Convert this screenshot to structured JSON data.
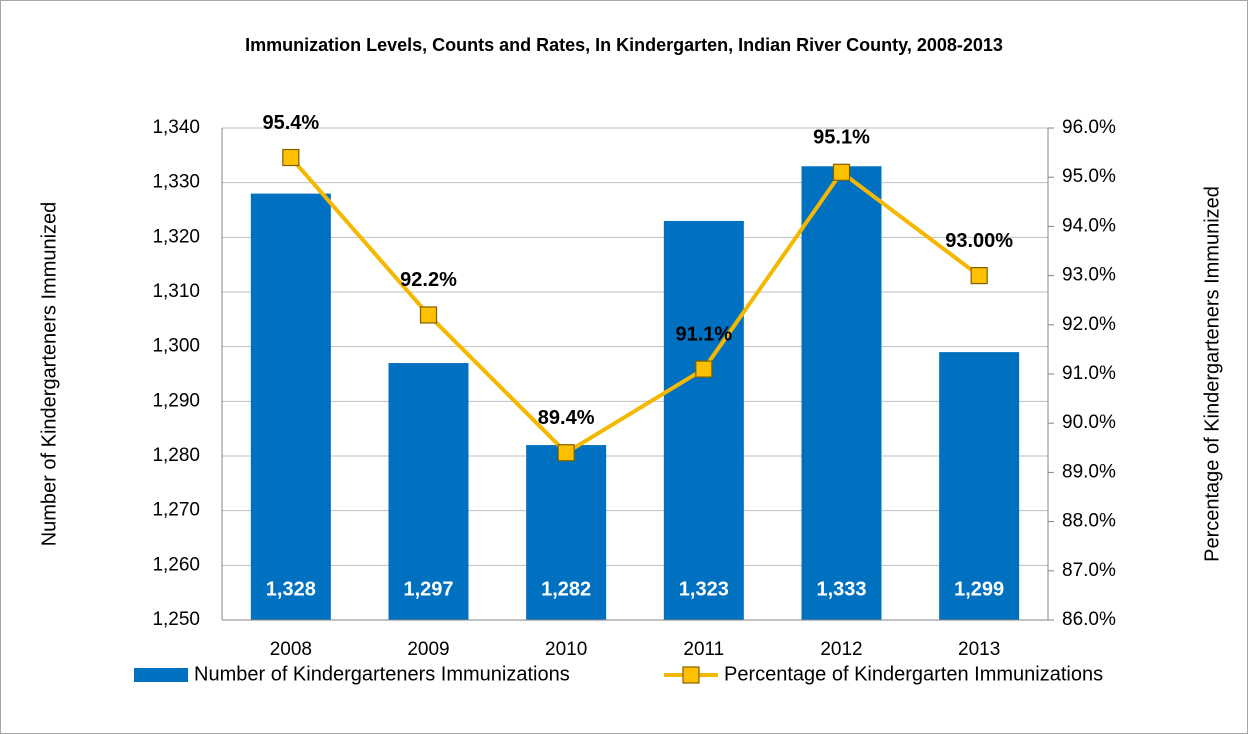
{
  "chart_data": {
    "type": "bar",
    "title": "Immunization Levels, Counts and Rates, In Kindergarten, Indian River County, 2008-2013",
    "ylabel": "Number of Kindergarteners Immunized",
    "y2label": "Percentage of Kindergarteners Immunized",
    "categories": [
      "2008",
      "2009",
      "2010",
      "2011",
      "2012",
      "2013"
    ],
    "series": [
      {
        "name": "Number of Kindergarteners Immunizations",
        "type": "bar",
        "color": "#0070c0",
        "values": [
          1328,
          1297,
          1282,
          1323,
          1333,
          1299
        ],
        "value_labels": [
          "1,328",
          "1,297",
          "1,282",
          "1,323",
          "1,333",
          "1,299"
        ]
      },
      {
        "name": "Percentage of Kindergarten Immunizations",
        "type": "line",
        "axis": "y2",
        "color": "#f5b800",
        "values": [
          95.4,
          92.2,
          89.4,
          91.1,
          95.1,
          93.0
        ],
        "value_labels": [
          "95.4%",
          "92.2%",
          "89.4%",
          "91.1%",
          "95.1%",
          "93.00%"
        ]
      }
    ],
    "ylim": [
      1250,
      1340
    ],
    "yticks": [
      {
        "value": 1250,
        "label": "1,250"
      },
      {
        "value": 1260,
        "label": "1,260"
      },
      {
        "value": 1270,
        "label": "1,270"
      },
      {
        "value": 1280,
        "label": "1,280"
      },
      {
        "value": 1290,
        "label": "1,290"
      },
      {
        "value": 1300,
        "label": "1,300"
      },
      {
        "value": 1310,
        "label": "1,310"
      },
      {
        "value": 1320,
        "label": "1,320"
      },
      {
        "value": 1330,
        "label": "1,330"
      },
      {
        "value": 1340,
        "label": "1,340"
      }
    ],
    "y2lim": [
      86,
      96
    ],
    "y2ticks": [
      {
        "value": 86,
        "label": "86.0%"
      },
      {
        "value": 87,
        "label": "87.0%"
      },
      {
        "value": 88,
        "label": "88.0%"
      },
      {
        "value": 89,
        "label": "89.0%"
      },
      {
        "value": 90,
        "label": "90.0%"
      },
      {
        "value": 91,
        "label": "91.0%"
      },
      {
        "value": 92,
        "label": "92.0%"
      },
      {
        "value": 93,
        "label": "93.0%"
      },
      {
        "value": 94,
        "label": "94.0%"
      },
      {
        "value": 95,
        "label": "95.0%"
      },
      {
        "value": 96,
        "label": "96.0%"
      }
    ],
    "grid": true,
    "legend": "bottom"
  }
}
